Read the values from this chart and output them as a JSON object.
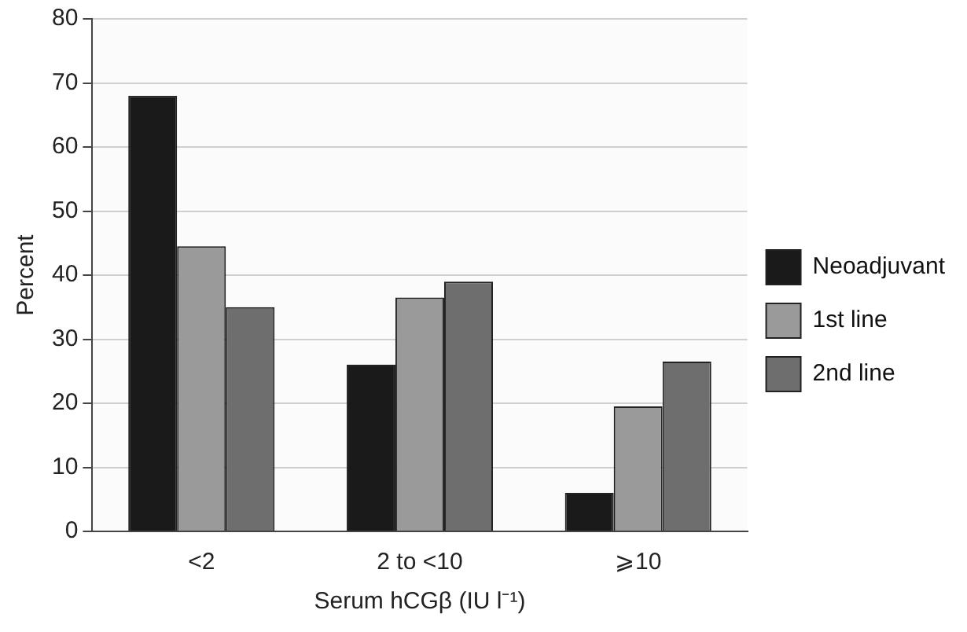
{
  "chart_data": {
    "type": "bar",
    "xlabel": "Serum hCGβ (IU l⁻¹)",
    "ylabel": "Percent",
    "categories": [
      "<2",
      "2 to <10",
      "⩾10"
    ],
    "series": [
      {
        "name": "Neoadjuvant",
        "color": "#1a1a1a",
        "values": [
          68,
          26,
          6
        ]
      },
      {
        "name": "1st line",
        "color": "#9a9a9a",
        "values": [
          44.5,
          36.5,
          19.5
        ]
      },
      {
        "name": "2nd line",
        "color": "#6e6e6e",
        "values": [
          35,
          39,
          26.5
        ]
      }
    ],
    "ylim": [
      0,
      80
    ],
    "yticks": [
      0,
      10,
      20,
      30,
      40,
      50,
      60,
      70,
      80
    ],
    "grid": "y",
    "legend": "right"
  }
}
